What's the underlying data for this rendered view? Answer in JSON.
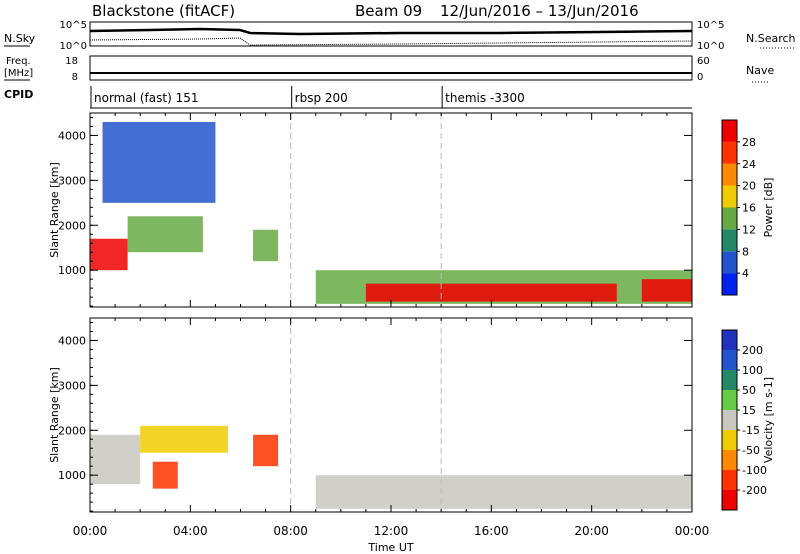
{
  "header": {
    "title": "Blackstone (fitACF)",
    "beam": "Beam 09",
    "date_range": "12/Jun/2016 – 13/Jun/2016"
  },
  "top_panels": {
    "nsky_label": "N.Sky",
    "nsky_ticks": [
      "10^5",
      "10^0"
    ],
    "nsearch_label": "N.Search",
    "nsearch_ticks": [
      "10^5",
      "10^0"
    ],
    "freq_label": "Freq.",
    "freq_unit": "[MHz]",
    "freq_ticks": [
      "18",
      "8"
    ],
    "nave_label": "Nave",
    "nave_ticks": [
      "60",
      "0"
    ],
    "cpid_label": "CPID"
  },
  "cpid_segments": [
    {
      "label": "normal (fast) 151",
      "start_h": 0
    },
    {
      "label": "rbsp 200",
      "start_h": 8
    },
    {
      "label": "themis -3300",
      "start_h": 14
    }
  ],
  "colors": {
    "power": [
      "#0022ee",
      "#2255cc",
      "#228866",
      "#66aa44",
      "#eecc00",
      "#ff8800",
      "#ff3300",
      "#ee0000"
    ],
    "velocity": [
      "#2233bb",
      "#2255cc",
      "#228866",
      "#66cc44",
      "#c8c8c0",
      "#eecc00",
      "#ff8800",
      "#ff3300",
      "#ee0000"
    ],
    "dashed_line": "#bbbbbb"
  },
  "chart_data": [
    {
      "type": "heatmap",
      "title": "Power",
      "xlabel": "",
      "ylabel": "Slant Range [km]",
      "xlim": [
        0,
        24
      ],
      "ylim": [
        180,
        4500
      ],
      "x_ticks": [
        "00:00",
        "04:00",
        "08:00",
        "12:00",
        "16:00",
        "20:00",
        "00:00"
      ],
      "y_ticks": [
        "1000",
        "2000",
        "3000",
        "4000"
      ],
      "colorbar_label": "Power [dB]",
      "colorbar_ticks": [
        "4",
        "8",
        "12",
        "16",
        "20",
        "24",
        "28"
      ],
      "regions": [
        {
          "x": [
            0,
            1.5
          ],
          "y": [
            1000,
            1700
          ],
          "level": 28
        },
        {
          "x": [
            1.5,
            4.5
          ],
          "y": [
            1400,
            2200
          ],
          "level": 14
        },
        {
          "x": [
            0.5,
            5
          ],
          "y": [
            2500,
            4300
          ],
          "level": 6
        },
        {
          "x": [
            6.5,
            7.5
          ],
          "y": [
            1200,
            1900
          ],
          "level": 14
        },
        {
          "x": [
            9,
            24
          ],
          "y": [
            250,
            1000
          ],
          "level": 12
        },
        {
          "x": [
            11,
            21
          ],
          "y": [
            300,
            700
          ],
          "level": 28
        },
        {
          "x": [
            22,
            24
          ],
          "y": [
            300,
            800
          ],
          "level": 28
        }
      ]
    },
    {
      "type": "heatmap",
      "title": "Velocity",
      "xlabel": "Time UT",
      "ylabel": "Slant Range [km]",
      "xlim": [
        0,
        24
      ],
      "ylim": [
        180,
        4500
      ],
      "x_ticks": [
        "00:00",
        "04:00",
        "08:00",
        "12:00",
        "16:00",
        "20:00",
        "00:00"
      ],
      "y_ticks": [
        "1000",
        "2000",
        "3000",
        "4000"
      ],
      "colorbar_label": "Velocity [m s-1]",
      "colorbar_ticks": [
        "200",
        "100",
        "50",
        "15",
        "-15",
        "-50",
        "-100",
        "-200"
      ],
      "regions": [
        {
          "x": [
            0,
            2
          ],
          "y": [
            800,
            1900
          ],
          "level": 0
        },
        {
          "x": [
            2,
            5.5
          ],
          "y": [
            1500,
            2100
          ],
          "level": -30
        },
        {
          "x": [
            6.5,
            7.5
          ],
          "y": [
            1200,
            1900
          ],
          "level": -150
        },
        {
          "x": [
            9,
            24
          ],
          "y": [
            250,
            1000
          ],
          "level": 0
        },
        {
          "x": [
            2.5,
            3.5
          ],
          "y": [
            700,
            1300
          ],
          "level": -150
        }
      ]
    }
  ]
}
